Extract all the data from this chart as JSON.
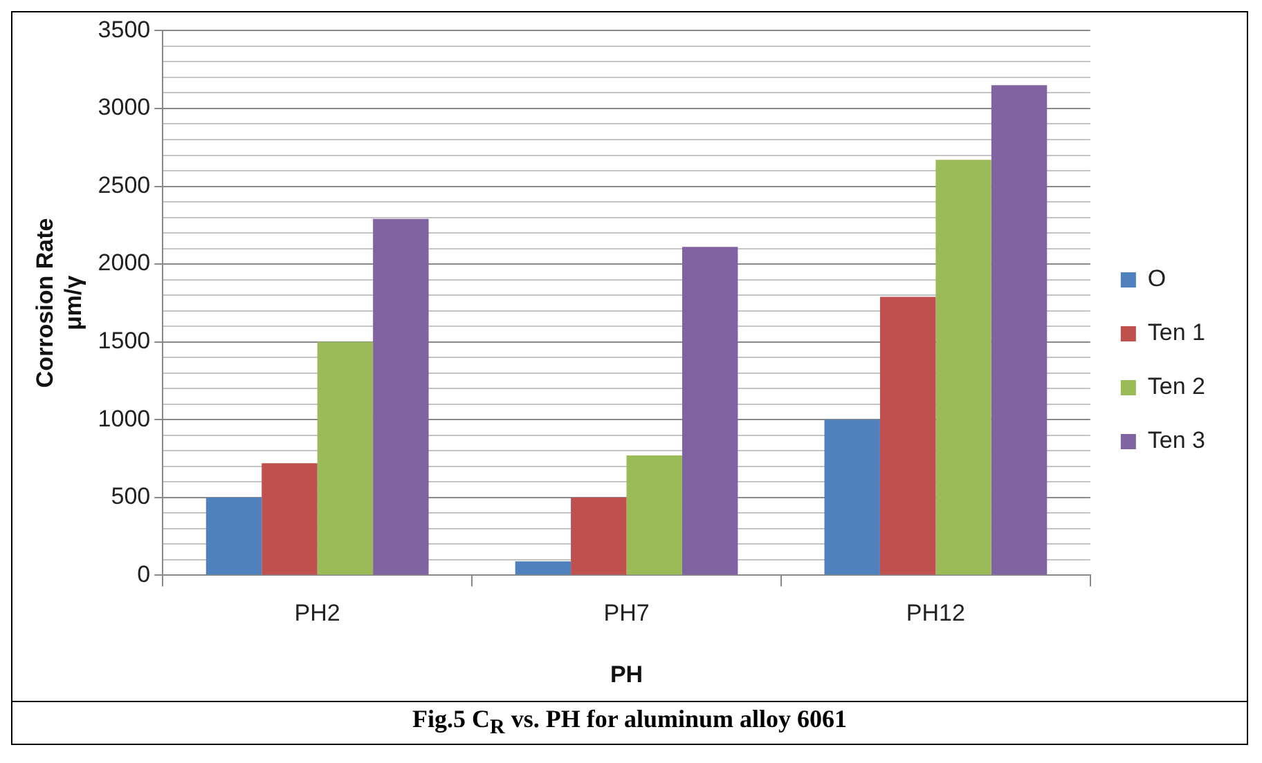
{
  "chart_data": {
    "type": "bar",
    "title": "Fig.5 C$_{R}$ vs. PH for aluminum alloy 6061",
    "xlabel": "PH",
    "ylabel": "Corrosion Rate\nμm/γ",
    "categories": [
      "PH2",
      "PH7",
      "PH12"
    ],
    "series": [
      {
        "name": "O",
        "color": "#4f81bd",
        "values": [
          500,
          90,
          1000
        ]
      },
      {
        "name": "Ten 1",
        "color": "#c0504d",
        "values": [
          720,
          500,
          1790
        ]
      },
      {
        "name": "Ten 2",
        "color": "#9bbb59",
        "values": [
          1500,
          770,
          2670
        ]
      },
      {
        "name": "Ten 3",
        "color": "#8064a2",
        "values": [
          2290,
          2110,
          3150
        ]
      }
    ],
    "ylim": [
      0,
      3500
    ],
    "yticks": [
      0,
      {
        "value": 100,
        "label": null
      },
      {
        "value": 200,
        "label": null
      },
      {
        "value": 300,
        "label": null
      },
      {
        "value": 400,
        "label": null
      },
      500,
      {
        "value": 600,
        "label": null
      },
      {
        "value": 700,
        "label": null
      },
      {
        "value": 800,
        "label": null
      },
      {
        "value": 900,
        "label": null
      },
      1000,
      {
        "value": 1100,
        "label": null
      },
      {
        "value": 1200,
        "label": null
      },
      {
        "value": 1300,
        "label": null
      },
      {
        "value": 1400,
        "label": null
      },
      1500,
      {
        "value": 1600,
        "label": null
      },
      {
        "value": 1700,
        "label": null
      },
      {
        "value": 1800,
        "label": null
      },
      {
        "value": 1900,
        "label": null
      },
      2000,
      {
        "value": 2100,
        "label": null
      },
      {
        "value": 2200,
        "label": null
      },
      {
        "value": 2300,
        "label": null
      },
      {
        "value": 2400,
        "label": null
      },
      2500,
      {
        "value": 2600,
        "label": null
      },
      {
        "value": 2700,
        "label": null
      },
      {
        "value": 2800,
        "label": null
      },
      {
        "value": 2900,
        "label": null
      },
      3000,
      {
        "value": 3100,
        "label": null
      },
      {
        "value": 3200,
        "label": null
      },
      {
        "value": 3300,
        "label": null
      },
      {
        "value": 3400,
        "label": null
      },
      3500
    ],
    "grid": "y",
    "legend": "right"
  }
}
